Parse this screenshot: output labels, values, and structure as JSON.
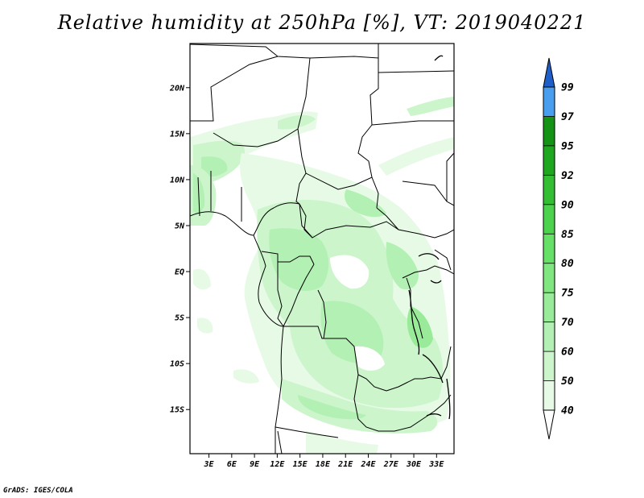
{
  "title": "Relative humidity at 250hPa [%], VT: 2019040221",
  "credit": "GrADS: IGES/COLA",
  "map": {
    "lon_ticks": [
      {
        "value": 3,
        "label": "3E"
      },
      {
        "value": 6,
        "label": "6E"
      },
      {
        "value": 9,
        "label": "9E"
      },
      {
        "value": 12,
        "label": "12E"
      },
      {
        "value": 15,
        "label": "15E"
      },
      {
        "value": 18,
        "label": "18E"
      },
      {
        "value": 21,
        "label": "21E"
      },
      {
        "value": 24,
        "label": "24E"
      },
      {
        "value": 27,
        "label": "27E"
      },
      {
        "value": 30,
        "label": "30E"
      },
      {
        "value": 33,
        "label": "33E"
      }
    ],
    "lat_ticks": [
      {
        "value": 20,
        "label": "20N"
      },
      {
        "value": 15,
        "label": "15N"
      },
      {
        "value": 10,
        "label": "10N"
      },
      {
        "value": 5,
        "label": "5N"
      },
      {
        "value": 0,
        "label": "EQ"
      },
      {
        "value": -5,
        "label": "5S"
      },
      {
        "value": -10,
        "label": "10S"
      },
      {
        "value": -15,
        "label": "15S"
      }
    ],
    "lon_range": [
      0.5,
      35.3
    ],
    "lat_range": [
      -19.8,
      24.8
    ]
  },
  "colorbar": {
    "levels": [
      "40",
      "50",
      "60",
      "70",
      "75",
      "80",
      "85",
      "90",
      "92",
      "95",
      "97",
      "99"
    ],
    "colors": [
      "#e6fae6",
      "#ccf5cc",
      "#b3f0b3",
      "#99eb99",
      "#80e680",
      "#66e066",
      "#4dd24d",
      "#33be33",
      "#1fa81f",
      "#159315",
      "#4a9ef0",
      "#2f7ce0",
      "#1e5fc8"
    ],
    "below_color": "#ffffff"
  }
}
